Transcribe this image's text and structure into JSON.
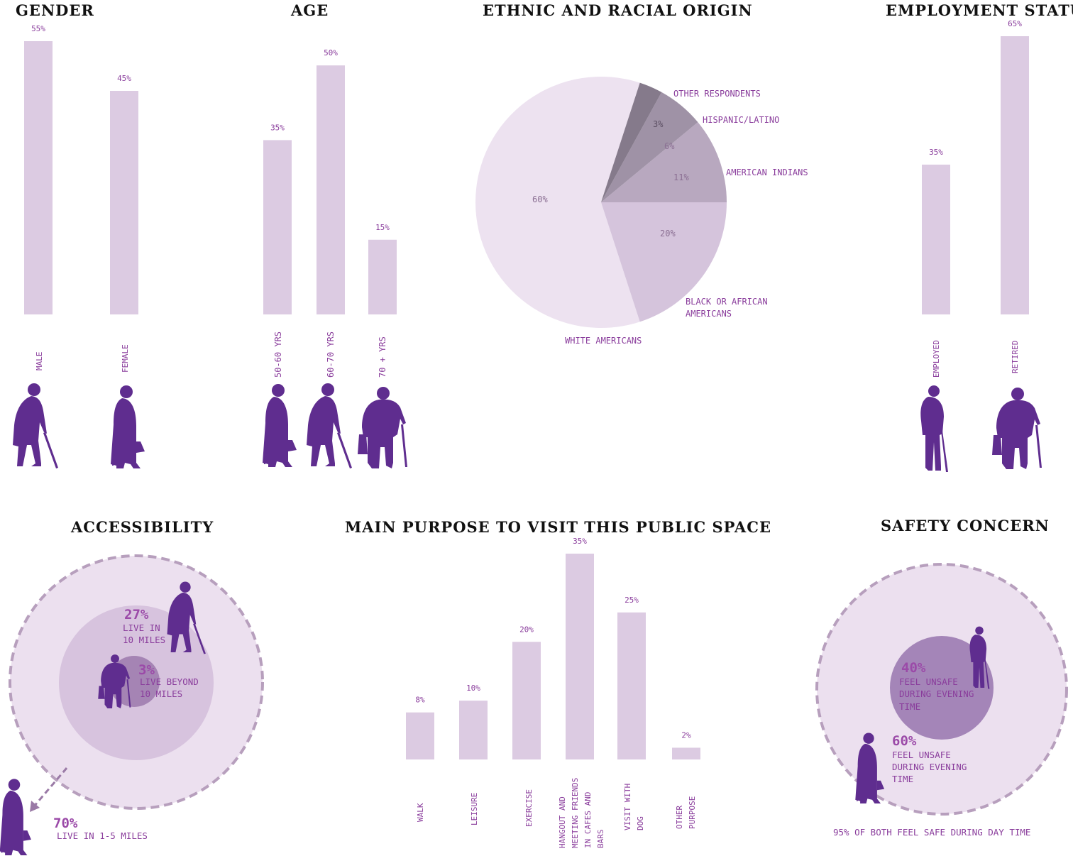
{
  "colors": {
    "bar": "#dccbe2",
    "text_accent": "#8a3d9c",
    "silhouette": "#5f2d8f",
    "title": "#111111"
  },
  "titles": {
    "gender": "GENDER",
    "age": "AGE",
    "ethnic": "ETHNIC AND RACIAL ORIGIN",
    "employment": "EMPLOYMENT STATUS",
    "accessibility": "ACCESSIBILITY",
    "purpose": "MAIN PURPOSE TO VISIT THIS PUBLIC SPACE",
    "safety": "SAFETY CONCERN"
  },
  "chart_data": [
    {
      "id": "gender",
      "type": "bar",
      "title": "GENDER",
      "categories": [
        "MALE",
        "FEMALE"
      ],
      "values": [
        55,
        45
      ],
      "value_labels": [
        "55%",
        "45%"
      ],
      "ylim": [
        0,
        55
      ]
    },
    {
      "id": "age",
      "type": "bar",
      "title": "AGE",
      "categories": [
        "50-60 YRS",
        "60-70 YRS",
        "70 + YRS"
      ],
      "values": [
        35,
        50,
        15
      ],
      "value_labels": [
        "35%",
        "50%",
        "15%"
      ],
      "ylim": [
        0,
        60
      ]
    },
    {
      "id": "ethnic",
      "type": "pie",
      "title": "ETHNIC AND RACIAL ORIGIN",
      "slices": [
        {
          "label": "WHITE AMERICANS",
          "value": 60,
          "value_label": "60%",
          "color": "#ede2f0"
        },
        {
          "label": "BLACK OR AFRICAN AMERICANS",
          "value": 20,
          "value_label": "20%",
          "color": "#d5c4dc"
        },
        {
          "label": "AMERICAN INDIANS",
          "value": 11,
          "value_label": "11%",
          "color": "#b8a8bf"
        },
        {
          "label": "HISPANIC/LATINO",
          "value": 6,
          "value_label": "6%",
          "color": "#9f92a6"
        },
        {
          "label": "OTHER RESPONDENTS",
          "value": 3,
          "value_label": "3%",
          "color": "#857a8b"
        }
      ],
      "external_labels": {
        "white": "WHITE AMERICANS",
        "black_line1": "BLACK OR AFRICAN",
        "black_line2": "AMERICANS",
        "indian": "AMERICAN INDIANS",
        "hispanic": "HISPANIC/LATINO",
        "other": "OTHER RESPONDENTS"
      }
    },
    {
      "id": "employment",
      "type": "bar",
      "title": "EMPLOYMENT STATUS",
      "categories": [
        "EMPLOYED",
        "RETIRED"
      ],
      "values": [
        35,
        65
      ],
      "value_labels": [
        "35%",
        "65%"
      ],
      "ylim": [
        0,
        65
      ]
    },
    {
      "id": "purpose",
      "type": "bar",
      "title": "MAIN PURPOSE TO VISIT THIS PUBLIC SPACE",
      "categories": [
        "WALK",
        "LEISURE",
        "EXERCISE",
        "HANGOUT AND MEETING FRIENDS IN CAFES AND BARS",
        "VISIT WITH DOG",
        "OTHER PURPOSE"
      ],
      "category_lines": [
        [
          "WALK"
        ],
        [
          "LEISURE"
        ],
        [
          "EXERCISE"
        ],
        [
          "HANGOUT AND",
          "MEETING FRIENDS",
          "IN CAFES AND",
          "BARS"
        ],
        [
          "VISIT WITH",
          "DOG"
        ],
        [
          "OTHER",
          "PURPOSE"
        ]
      ],
      "values": [
        8,
        10,
        20,
        35,
        25,
        2
      ],
      "value_labels": [
        "8%",
        "10%",
        "20%",
        "35%",
        "25%",
        "2%"
      ],
      "ylim": [
        0,
        35
      ]
    },
    {
      "id": "accessibility",
      "type": "concentric",
      "title": "ACCESSIBILITY",
      "rings": [
        {
          "value": 70,
          "value_label": "70%",
          "caption": [
            "LIVE IN 1-5 MILES"
          ]
        },
        {
          "value": 27,
          "value_label": "27%",
          "caption": [
            "LIVE IN",
            "10 MILES"
          ]
        },
        {
          "value": 3,
          "value_label": "3%",
          "caption": [
            "LIVE BEYOND",
            "10 MILES"
          ]
        }
      ]
    },
    {
      "id": "safety",
      "type": "concentric",
      "title": "SAFETY CONCERN",
      "rings": [
        {
          "value": 60,
          "value_label": "60%",
          "caption": [
            "FEEL UNSAFE",
            "DURING EVENING",
            "TIME"
          ]
        },
        {
          "value": 40,
          "value_label": "40%",
          "caption": [
            "FEEL UNSAFE",
            "DURING EVENING",
            "TIME"
          ]
        }
      ],
      "footnote": "95% OF BOTH FEEL SAFE DURING DAY TIME"
    }
  ]
}
